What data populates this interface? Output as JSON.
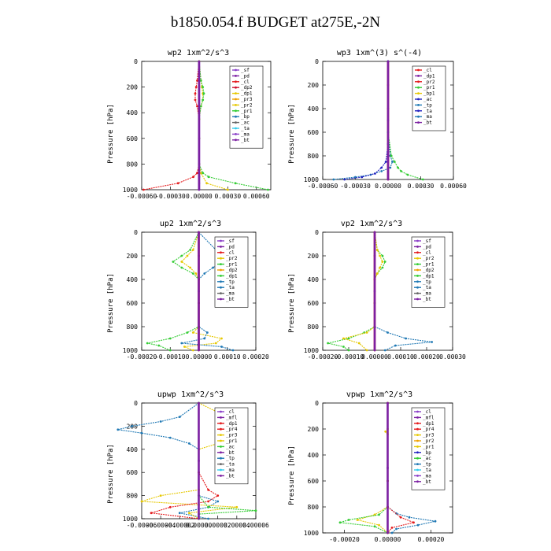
{
  "figure_title": "b1850.054.f  BUDGET at275E,-2N",
  "colors": {
    "purple": "#8a3fc8",
    "dark_purple": "#7b1fa2",
    "red": "#e41a1c",
    "crimson": "#d0102c",
    "yellow": "#e6c800",
    "orange": "#f0a000",
    "green": "#33cc33",
    "blue": "#2020c0",
    "teal": "#1f78b4",
    "grey": "#666666",
    "cyan": "#33ccee"
  },
  "chart_data": [
    {
      "type": "line",
      "title": "wp2   1xm^2/s^3",
      "ylabel": "Pressure [hPa]",
      "xlim": [
        -0.0006,
        0.00075
      ],
      "ylim": [
        1000,
        0
      ],
      "xticks": [
        -0.0006,
        -0.0003,
        0.0,
        0.0003,
        0.0006
      ],
      "xtick_labels": [
        "-0.00060",
        "-0.00030",
        "0.00000",
        "0.00030",
        "0.00060"
      ],
      "yticks": [
        0,
        200,
        400,
        600,
        800,
        1000
      ],
      "ytick_labels": [
        "0",
        "200",
        "400",
        "600",
        "800",
        "1000"
      ],
      "legend_position": "upper-right",
      "legend": [
        "_sf",
        "_pd",
        "_cl",
        "_dp2",
        "_dp1",
        "_pr3",
        "_pr2",
        "_pr1",
        "_bp",
        "_ac",
        "_ta",
        "_ma",
        "_bt"
      ],
      "series": [
        {
          "name": "_sf",
          "color": "#8a3fc8",
          "y": [
            0,
            100,
            200,
            300,
            400,
            600,
            800,
            900,
            950,
            1000
          ],
          "x": [
            0.0,
            0.0,
            0.0,
            0.0,
            0.0,
            0.0,
            0.0,
            0.0,
            0.0,
            0.0
          ]
        },
        {
          "name": "_cl",
          "color": "#e41a1c",
          "y": [
            0,
            150,
            200,
            250,
            300,
            350,
            450,
            600,
            800,
            870,
            900,
            950,
            1000
          ],
          "x": [
            0.0,
            -2e-05,
            -3e-05,
            -4e-05,
            -4e-05,
            -2e-05,
            0.0,
            0.0,
            0.0,
            -2e-05,
            -6e-05,
            -0.00022,
            -0.00058
          ]
        },
        {
          "name": "_pr2",
          "color": "#e6c800",
          "y": [
            0,
            150,
            200,
            250,
            300,
            350,
            450,
            600,
            800,
            870,
            950,
            1000
          ],
          "x": [
            0.0,
            2e-05,
            3e-05,
            4e-05,
            4e-05,
            2e-05,
            0.0,
            0.0,
            0.0,
            2e-05,
            8e-05,
            0.0003
          ]
        },
        {
          "name": "_pr1",
          "color": "#33cc33",
          "y": [
            0,
            150,
            200,
            250,
            300,
            350,
            450,
            600,
            800,
            870,
            900,
            950,
            1000
          ],
          "x": [
            0.0,
            2e-05,
            4e-05,
            5e-05,
            4e-05,
            2e-05,
            0.0,
            0.0,
            0.0,
            4e-05,
            0.0001,
            0.00038,
            0.00072
          ]
        },
        {
          "name": "_bt",
          "color": "#7b1fa2",
          "y": [
            0,
            200,
            400,
            600,
            800,
            900,
            1000
          ],
          "x": [
            0.0,
            0.0,
            0.0,
            0.0,
            0.0,
            0.0,
            0.0
          ]
        }
      ]
    },
    {
      "type": "line",
      "title": "wp3   1xm^(3) s^(-4)",
      "ylabel": "Pressure [hPa]",
      "xlim": [
        -0.0006,
        0.0006
      ],
      "ylim": [
        1000,
        0
      ],
      "xticks": [
        -0.0006,
        -0.0003,
        0.0,
        0.0003,
        0.0006
      ],
      "xtick_labels": [
        "-0.00060",
        "-0.00030",
        "0.00000",
        "0.00030",
        "0.00060"
      ],
      "yticks": [
        0,
        200,
        400,
        600,
        800,
        1000
      ],
      "ytick_labels": [
        "0",
        "200",
        "400",
        "600",
        "800",
        "1000"
      ],
      "legend_position": "upper-right",
      "legend": [
        "_cl",
        "_dp1",
        "_pr2",
        "_pr1",
        "_bp1",
        "_ac",
        "_tp",
        "_ta",
        "_ma",
        "_bt"
      ],
      "series": [
        {
          "name": "_cl",
          "color": "#e41a1c",
          "y": [
            0,
            200,
            400,
            600,
            800,
            1000
          ],
          "x": [
            0.0,
            0.0,
            0.0,
            0.0,
            0.0,
            0.0
          ]
        },
        {
          "name": "_tp",
          "color": "#1f78b4",
          "y": [
            0,
            600,
            800,
            850,
            900,
            930,
            960,
            980,
            1000
          ],
          "x": [
            0.0,
            0.0,
            2e-05,
            4e-05,
            2e-05,
            -6e-05,
            -0.00016,
            -0.0003,
            -0.0005
          ]
        },
        {
          "name": "_pr1",
          "color": "#33cc33",
          "y": [
            0,
            600,
            800,
            850,
            900,
            930,
            960,
            1000
          ],
          "x": [
            0.0,
            0.0,
            3e-05,
            6e-05,
            9e-05,
            0.00012,
            0.00018,
            0.00032
          ]
        },
        {
          "name": "_ac",
          "color": "#2020c0",
          "y": [
            0,
            700,
            850,
            900,
            950,
            980,
            1000
          ],
          "x": [
            0.0,
            0.0,
            -2e-05,
            -6e-05,
            -0.00012,
            -0.00024,
            -0.0004
          ]
        },
        {
          "name": "_bt",
          "color": "#7b1fa2",
          "y": [
            0,
            500,
            1000
          ],
          "x": [
            0.0,
            0.0,
            0.0
          ]
        }
      ]
    },
    {
      "type": "line",
      "title": "up2   1xm^2/s^3",
      "ylabel": "Pressure [hPa]",
      "xlim": [
        -0.0002,
        0.0002
      ],
      "ylim": [
        1000,
        0
      ],
      "xticks": [
        -0.0002,
        -0.0001,
        0.0,
        0.0001,
        0.0002
      ],
      "xtick_labels": [
        "-0.00020",
        "-0.00010",
        "0.00000",
        "0.00010",
        "0.00020"
      ],
      "yticks": [
        0,
        200,
        400,
        600,
        800,
        1000
      ],
      "ytick_labels": [
        "0",
        "200",
        "400",
        "600",
        "800",
        "1000"
      ],
      "legend_position": "upper-right",
      "legend": [
        "_sf",
        "_pd",
        "_cl",
        "_pr2",
        "_pr1",
        "_dp2",
        "_dp1",
        "_tp",
        "_ta",
        "_ma",
        "_bt"
      ],
      "series": [
        {
          "name": "_pr2",
          "color": "#e6c800",
          "y": [
            0,
            150,
            200,
            250,
            300,
            350,
            400,
            600,
            800,
            850,
            900,
            940,
            970,
            1000
          ],
          "x": [
            0.0,
            -2e-05,
            -4e-05,
            -6e-05,
            -3e-05,
            -1e-05,
            0.0,
            0.0,
            0.0,
            -2e-05,
            8e-05,
            6e-05,
            -5e-05,
            -2e-05
          ]
        },
        {
          "name": "_pr1",
          "color": "#33cc33",
          "y": [
            0,
            150,
            200,
            250,
            300,
            350,
            400,
            600,
            800,
            850,
            900,
            940,
            960,
            1000
          ],
          "x": [
            0.0,
            -3e-05,
            -6e-05,
            -9e-05,
            -6e-05,
            -2e-05,
            0.0,
            0.0,
            0.0,
            -4e-05,
            -0.0001,
            -0.00018,
            -0.00014,
            -0.0001
          ]
        },
        {
          "name": "_tp",
          "color": "#1f78b4",
          "y": [
            0,
            150,
            200,
            250,
            300,
            350,
            400,
            600,
            800,
            850,
            900,
            940,
            970,
            1000
          ],
          "x": [
            0.0,
            6e-05,
            0.0001,
            8e-05,
            5e-05,
            2e-05,
            0.0,
            0.0,
            0.0,
            3e-05,
            2e-05,
            -6e-05,
            8e-05,
            0.00012
          ]
        },
        {
          "name": "_cl",
          "color": "#e41a1c",
          "y": [
            0,
            200,
            400,
            600,
            800,
            1000
          ],
          "x": [
            0.0,
            0.0,
            0.0,
            0.0,
            0.0,
            0.0
          ]
        },
        {
          "name": "_bt",
          "color": "#7b1fa2",
          "y": [
            0,
            500,
            1000
          ],
          "x": [
            0.0,
            0.0,
            0.0
          ]
        }
      ]
    },
    {
      "type": "line",
      "title": "vp2   1xm^2/s^3",
      "ylabel": "Pressure [hPa]",
      "xlim": [
        -0.0002,
        0.0003
      ],
      "ylim": [
        1000,
        0
      ],
      "xticks": [
        -0.0002,
        -0.0001,
        0.0,
        0.0001,
        0.0002,
        0.0003
      ],
      "xtick_labels": [
        "-0.00020",
        "-0.00010",
        "0.00000",
        "0.00010",
        "0.00020",
        "0.00030"
      ],
      "yticks": [
        0,
        200,
        400,
        600,
        800,
        1000
      ],
      "ytick_labels": [
        "0",
        "200",
        "400",
        "600",
        "800",
        "1000"
      ],
      "legend_position": "upper-right",
      "legend": [
        "_sf",
        "_pd",
        "_cl",
        "_pr2",
        "_pr1",
        "_dp2",
        "_dp1",
        "_tp",
        "_ta",
        "_ma",
        "_bt"
      ],
      "series": [
        {
          "name": "_pr1",
          "color": "#33cc33",
          "y": [
            0,
            150,
            200,
            250,
            300,
            350,
            400,
            600,
            800,
            850,
            900,
            940,
            970,
            1000
          ],
          "x": [
            0.0,
            1e-05,
            3e-05,
            4e-05,
            3e-05,
            1e-05,
            0.0,
            0.0,
            0.0,
            -4e-05,
            -0.0001,
            -0.00018,
            -0.00012,
            -0.0001
          ]
        },
        {
          "name": "_pr2",
          "color": "#e6c800",
          "y": [
            0,
            150,
            200,
            250,
            300,
            350,
            400,
            600,
            800,
            850,
            900,
            940,
            1000
          ],
          "x": [
            0.0,
            1e-05,
            2e-05,
            3e-05,
            2e-05,
            1e-05,
            0.0,
            0.0,
            0.0,
            -3e-05,
            -0.00012,
            -6e-05,
            -3e-05
          ]
        },
        {
          "name": "_tp",
          "color": "#1f78b4",
          "y": [
            0,
            600,
            800,
            850,
            900,
            930,
            960,
            1000
          ],
          "x": [
            0.0,
            0.0,
            0.0,
            5e-05,
            0.00012,
            0.00022,
            8e-05,
            4e-05
          ]
        },
        {
          "name": "_cl",
          "color": "#e41a1c",
          "y": [
            0,
            200,
            400,
            600,
            800,
            1000
          ],
          "x": [
            0.0,
            0.0,
            0.0,
            0.0,
            0.0,
            0.0
          ]
        },
        {
          "name": "_bt",
          "color": "#7b1fa2",
          "y": [
            0,
            500,
            1000
          ],
          "x": [
            0.0,
            0.0,
            0.0
          ]
        }
      ]
    },
    {
      "type": "line",
      "title": "upwp   1xm^2/s^3",
      "ylabel": "Pressure [hPa]",
      "xlim": [
        -6e-05,
        6e-05
      ],
      "ylim": [
        1000,
        0
      ],
      "xticks": [
        -6e-05,
        -4e-05,
        -2e-05,
        0.0,
        2e-05,
        4e-05,
        6e-05
      ],
      "xtick_labels": [
        "-0.00006",
        "-0.00004",
        "-0.00002",
        "0.00000",
        "0.00002",
        "0.00004",
        "0.00006"
      ],
      "yticks": [
        0,
        200,
        400,
        600,
        800,
        1000
      ],
      "ytick_labels": [
        "0",
        "200",
        "400",
        "600",
        "800",
        "1000"
      ],
      "legend_position": "upper-right",
      "legend": [
        "_cl",
        "_mfl",
        "_dp1",
        "_pr4",
        "_pr3",
        "_pr1",
        "_ac",
        "_bt",
        "_tp",
        "_ta",
        "_ma",
        "_bt"
      ],
      "series": [
        {
          "name": "_tp",
          "color": "#1f78b4",
          "y": [
            0,
            120,
            160,
            200,
            230,
            260,
            300,
            350,
            400,
            600,
            800,
            850,
            900,
            950,
            1000
          ],
          "x": [
            0.0,
            -2e-05,
            -4e-05,
            -7e-05,
            -8.5e-05,
            -6e-05,
            -3e-05,
            -1e-05,
            0.0,
            0.0,
            0.0,
            2e-05,
            1e-05,
            -2e-05,
            1e-05
          ]
        },
        {
          "name": "_pr1",
          "color": "#e6c800",
          "y": [
            0,
            120,
            200,
            250,
            300,
            350,
            400,
            600,
            750,
            800,
            850,
            900,
            950,
            1000
          ],
          "x": [
            0.0,
            3e-05,
            5e-05,
            2e-05,
            4e-05,
            2e-05,
            0.0,
            0.0,
            0.0,
            -4e-05,
            -6e-05,
            4e-05,
            -1e-05,
            0.0
          ]
        },
        {
          "name": "_pr4",
          "color": "#e41a1c",
          "y": [
            0,
            600,
            750,
            800,
            850,
            900,
            950,
            1000
          ],
          "x": [
            0.0,
            0.0,
            1e-05,
            2e-05,
            1e-05,
            -3e-05,
            -5e-05,
            0.0
          ]
        },
        {
          "name": "_ac",
          "color": "#33cc33",
          "y": [
            0,
            800,
            900,
            930,
            960,
            1000
          ],
          "x": [
            0.0,
            0.0,
            1e-05,
            6e-05,
            0.0,
            0.0
          ]
        },
        {
          "name": "_bt",
          "color": "#7b1fa2",
          "y": [
            0,
            500,
            1000
          ],
          "x": [
            0.0,
            0.0,
            0.0
          ]
        }
      ]
    },
    {
      "type": "line",
      "title": "vpwp   1xm^2/s^3",
      "ylabel": "Pressure [hPa]",
      "xlim": [
        -0.0003,
        0.0003
      ],
      "ylim": [
        1000,
        0
      ],
      "xticks": [
        -0.0002,
        0.0,
        0.0002
      ],
      "xtick_labels": [
        "-0.00020",
        "0.00000",
        "0.00020"
      ],
      "yticks": [
        0,
        200,
        400,
        600,
        800,
        1000
      ],
      "ytick_labels": [
        "0",
        "200",
        "400",
        "600",
        "800",
        "1000"
      ],
      "legend_position": "upper-right",
      "legend": [
        "_cl",
        "_mfl",
        "_dp1",
        "_pr4",
        "_pr3",
        "_pr2",
        "_pr1",
        "_bp",
        "_ac",
        "_tp",
        "_ta",
        "_ma",
        "_bt"
      ],
      "series": [
        {
          "name": "_tp",
          "color": "#1f78b4",
          "y": [
            0,
            600,
            800,
            850,
            880,
            910,
            940,
            970,
            1000
          ],
          "x": [
            0.0,
            0.0,
            0.0,
            4e-05,
            0.0001,
            0.00022,
            0.00014,
            4e-05,
            2e-05
          ]
        },
        {
          "name": "_pr1",
          "color": "#e6c800",
          "y": [
            0,
            200,
            220,
            240,
            600,
            800,
            860,
            900,
            940,
            1000
          ],
          "x": [
            0.0,
            0.0,
            -1e-05,
            0.0,
            0.0,
            0.0,
            -6e-05,
            -0.00014,
            -4e-05,
            0.0
          ]
        },
        {
          "name": "_ac",
          "color": "#33cc33",
          "y": [
            0,
            600,
            800,
            860,
            900,
            920,
            950,
            1000
          ],
          "x": [
            0.0,
            0.0,
            0.0,
            -4e-05,
            -0.00018,
            -0.00022,
            -6e-05,
            0.0
          ]
        },
        {
          "name": "_pr4",
          "color": "#e41a1c",
          "y": [
            0,
            600,
            800,
            880,
            920,
            960,
            1000
          ],
          "x": [
            0.0,
            0.0,
            0.0,
            6e-05,
            0.00012,
            2e-05,
            0.0
          ]
        },
        {
          "name": "_bt",
          "color": "#7b1fa2",
          "y": [
            0,
            500,
            1000
          ],
          "x": [
            0.0,
            0.0,
            0.0
          ]
        }
      ]
    }
  ]
}
